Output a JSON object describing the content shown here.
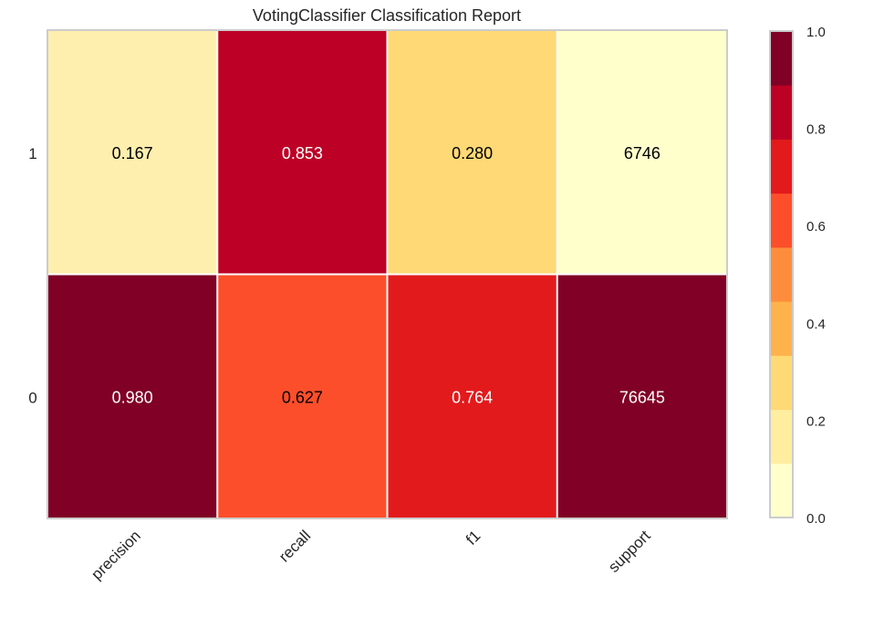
{
  "chart_data": {
    "type": "heatmap",
    "title": "VotingClassifier Classification Report",
    "xlabel": "",
    "ylabel": "",
    "columns": [
      "precision",
      "recall",
      "f1",
      "support"
    ],
    "rows": [
      "1",
      "0"
    ],
    "values": [
      [
        0.167,
        0.853,
        0.28,
        6746
      ],
      [
        0.98,
        0.627,
        0.764,
        76645
      ]
    ],
    "cell_labels": [
      [
        "0.167",
        "0.853",
        "0.280",
        "6746"
      ],
      [
        "0.980",
        "0.627",
        "0.764",
        "76645"
      ]
    ],
    "cell_colors": [
      [
        "#feefae",
        "#bd0026",
        "#fed976",
        "#ffffcc"
      ],
      [
        "#800026",
        "#fc4e2a",
        "#e31a1c",
        "#800026"
      ]
    ],
    "label_colors": [
      [
        "#000000",
        "#ffffff",
        "#000000",
        "#000000"
      ],
      [
        "#ffffff",
        "#000000",
        "#ffffff",
        "#ffffff"
      ]
    ],
    "colorbar": {
      "range": [
        0.0,
        1.0
      ],
      "ticks": [
        "0.0",
        "0.2",
        "0.4",
        "0.6",
        "0.8",
        "1.0"
      ],
      "tick_values": [
        0.0,
        0.2,
        0.4,
        0.6,
        0.8,
        1.0
      ],
      "colors": [
        "#ffffcc",
        "#ffeda0",
        "#fed976",
        "#feb24c",
        "#fd8d3c",
        "#fc4e2a",
        "#e31a1c",
        "#bd0026",
        "#800026"
      ]
    },
    "grid": false
  }
}
